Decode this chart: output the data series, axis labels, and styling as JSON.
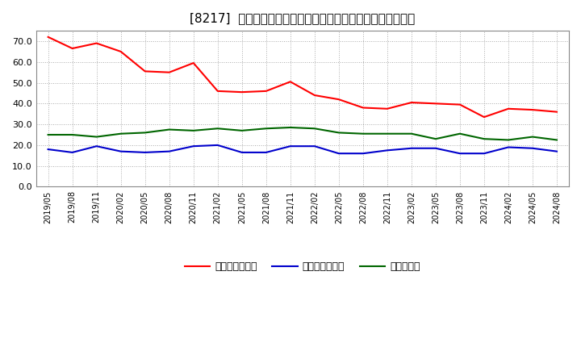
{
  "title": "[8217]  売上債権回転率、買入債務回転率、在庫回転率の推移",
  "x_labels": [
    "2019/05",
    "2019/08",
    "2019/11",
    "2020/02",
    "2020/05",
    "2020/08",
    "2020/11",
    "2021/02",
    "2021/05",
    "2021/08",
    "2021/11",
    "2022/02",
    "2022/05",
    "2022/08",
    "2022/11",
    "2023/02",
    "2023/05",
    "2023/08",
    "2023/11",
    "2024/02",
    "2024/05",
    "2024/08"
  ],
  "receivables_turnover": [
    72.0,
    66.5,
    69.0,
    65.0,
    55.5,
    55.0,
    59.5,
    46.0,
    45.5,
    46.0,
    50.5,
    44.0,
    42.0,
    38.0,
    37.5,
    40.5,
    40.0,
    39.5,
    33.5,
    37.5,
    37.0,
    36.0
  ],
  "payables_turnover": [
    18.0,
    16.5,
    19.5,
    17.0,
    16.5,
    17.0,
    19.5,
    20.0,
    16.5,
    16.5,
    19.5,
    19.5,
    16.0,
    16.0,
    17.5,
    18.5,
    18.5,
    16.0,
    16.0,
    19.0,
    18.5,
    17.0
  ],
  "inventory_turnover": [
    25.0,
    25.0,
    24.0,
    25.5,
    26.0,
    27.5,
    27.0,
    28.0,
    27.0,
    28.0,
    28.5,
    28.0,
    26.0,
    25.5,
    25.5,
    25.5,
    23.0,
    25.5,
    23.0,
    22.5,
    24.0,
    22.5
  ],
  "line_colors": {
    "receivables": "#ff0000",
    "payables": "#0000cc",
    "inventory": "#006600"
  },
  "legend_labels": {
    "receivables": "売上債権回転率",
    "payables": "買入債務回転率",
    "inventory": "在庫回転率"
  },
  "ylim": [
    0.0,
    75.0
  ],
  "yticks": [
    0.0,
    10.0,
    20.0,
    30.0,
    40.0,
    50.0,
    60.0,
    70.0
  ],
  "background_color": "#ffffff",
  "plot_background": "#ffffff",
  "grid_color": "#aaaaaa",
  "title_fontsize": 11
}
